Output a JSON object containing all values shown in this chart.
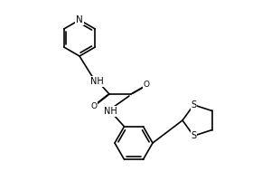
{
  "bg_color": "#ffffff",
  "line_color": "#000000",
  "lw": 1.2,
  "fs": 7.5,
  "dpi": 100,
  "xlim": [
    0,
    300
  ],
  "ylim": [
    0,
    200
  ]
}
